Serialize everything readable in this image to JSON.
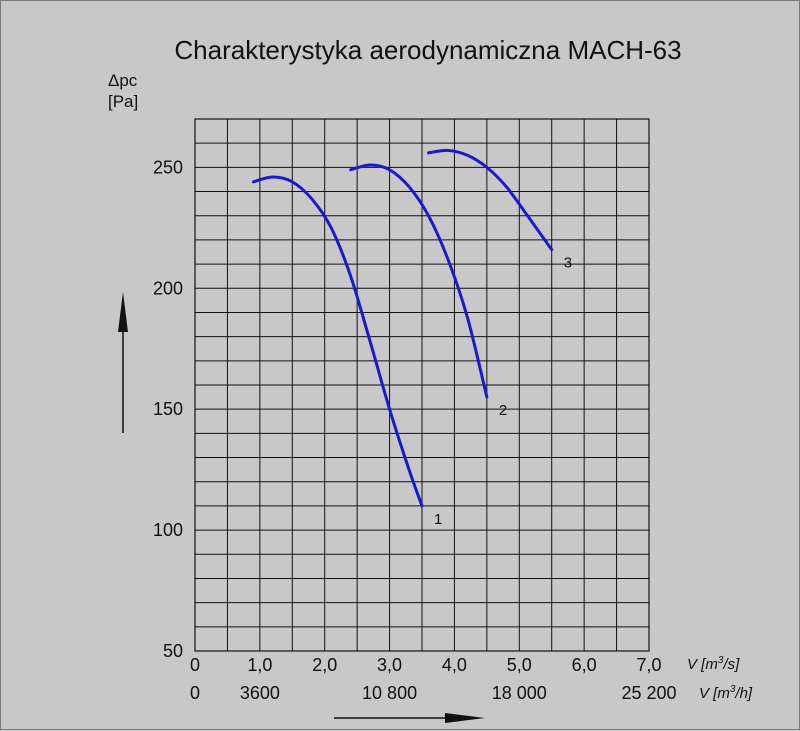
{
  "chart_data": {
    "type": "line",
    "title": "Charakterystyka aerodynamiczna MACH-63",
    "ylabel_symbol": "Δpc",
    "ylabel_unit": "[Pa]",
    "ylim": [
      50,
      270
    ],
    "yticks": [
      50,
      100,
      150,
      200,
      250
    ],
    "ytick_labels": [
      "50",
      "100",
      "150",
      "200",
      "250"
    ],
    "xlim": [
      0,
      7.0
    ],
    "xticks": [
      0,
      1,
      2,
      3,
      4,
      5,
      6,
      7
    ],
    "xtick_labels": [
      "0",
      "1,0",
      "2,0",
      "3,0",
      "4,0",
      "5,0",
      "6,0",
      "7,0"
    ],
    "xunit_m3s_prefix": "V [m",
    "xunit_m3s_sup": "3",
    "xunit_m3s_suffix": "/s]",
    "x2_ticks": [
      0,
      1,
      3,
      5,
      7
    ],
    "x2_tick_labels": [
      "0",
      "3600",
      "10 800",
      "18 000",
      "25 200"
    ],
    "xunit_m3h_prefix": "V [m",
    "xunit_m3h_sup": "3",
    "xunit_m3h_suffix": "/h]",
    "grid": true,
    "grid_x_step": 0.5,
    "grid_y_step": 10,
    "series_color": "#1a1acc",
    "series": [
      {
        "label": "1",
        "x": [
          0.9,
          1.2,
          1.5,
          1.8,
          2.1,
          2.4,
          2.7,
          3.0,
          3.3,
          3.5
        ],
        "y": [
          244,
          246,
          244,
          237,
          225,
          205,
          178,
          150,
          125,
          110
        ]
      },
      {
        "label": "2",
        "x": [
          2.4,
          2.7,
          3.0,
          3.3,
          3.6,
          3.9,
          4.2,
          4.5
        ],
        "y": [
          249,
          251,
          249,
          242,
          230,
          212,
          188,
          155
        ]
      },
      {
        "label": "3",
        "x": [
          3.6,
          3.9,
          4.2,
          4.5,
          4.8,
          5.1,
          5.5
        ],
        "y": [
          256,
          257,
          255,
          250,
          242,
          231,
          216
        ]
      }
    ]
  }
}
